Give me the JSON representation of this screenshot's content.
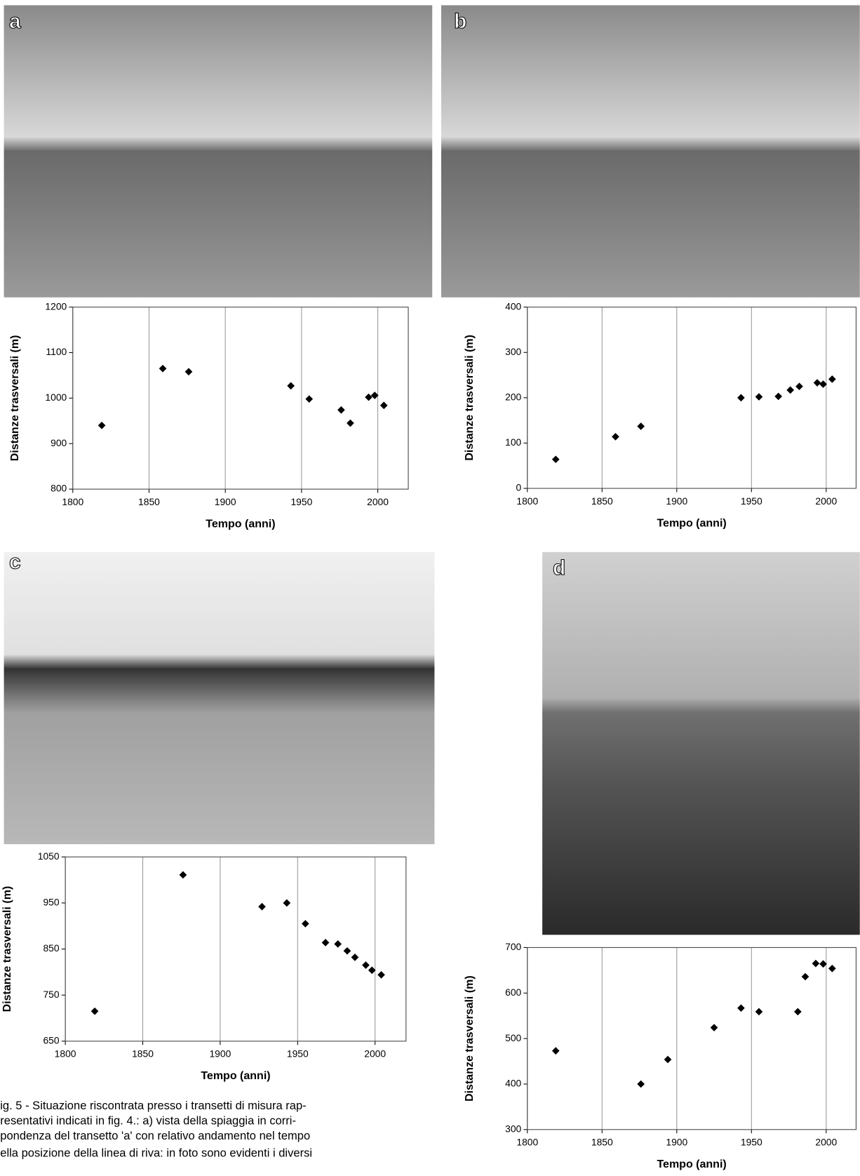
{
  "panels": [
    "a",
    "b",
    "c",
    "d"
  ],
  "caption": [
    "ig. 5 - Situazione riscontrata presso i transetti di misura rap-",
    "resentativi indicati in fig. 4.: a) vista della spiaggia in corri-",
    "pondenza del transetto 'a' con relativo andamento nel tempo",
    "ella posizione della linea di riva: in foto sono evidenti i diversi"
  ],
  "chart_data": [
    {
      "type": "scatter",
      "xlabel": "Tempo (anni)",
      "ylabel": "Distanze trasversali (m)",
      "color": "#000000",
      "grid": "x",
      "x": [
        1819,
        1859,
        1876,
        1943,
        1955,
        1976,
        1982,
        1994,
        1998,
        2004
      ],
      "values": [
        940,
        1065,
        1058,
        1027,
        998,
        974,
        945,
        1002,
        1006,
        984
      ],
      "xlim": [
        1800,
        2020
      ],
      "xticks": [
        1800,
        1850,
        1900,
        1950,
        2000
      ],
      "ylim": [
        800,
        1200
      ],
      "yticks": [
        800,
        900,
        1000,
        1100,
        1200
      ]
    },
    {
      "type": "scatter",
      "xlabel": "Tempo (anni)",
      "ylabel": "Distanze trasversali (m)",
      "color": "#000000",
      "grid": "x",
      "x": [
        1819,
        1859,
        1876,
        1943,
        1955,
        1968,
        1976,
        1982,
        1994,
        1998,
        2004
      ],
      "values": [
        64,
        114,
        137,
        200,
        202,
        203,
        217,
        225,
        233,
        230,
        241
      ],
      "xlim": [
        1800,
        2020
      ],
      "xticks": [
        1800,
        1850,
        1900,
        1950,
        2000
      ],
      "ylim": [
        0,
        400
      ],
      "yticks": [
        0,
        100,
        200,
        300,
        400
      ]
    },
    {
      "type": "scatter",
      "xlabel": "Tempo (anni)",
      "ylabel": "Distanze trasversali (m)",
      "color": "#000000",
      "grid": "x",
      "x": [
        1819,
        1876,
        1927,
        1943,
        1955,
        1968,
        1976,
        1982,
        1987,
        1994,
        1998,
        2004
      ],
      "values": [
        715,
        1011,
        942,
        950,
        905,
        864,
        861,
        846,
        832,
        815,
        804,
        794
      ],
      "xlim": [
        1800,
        2020
      ],
      "xticks": [
        1800,
        1850,
        1900,
        1950,
        2000
      ],
      "ylim": [
        650,
        1050
      ],
      "yticks": [
        650,
        750,
        850,
        950,
        1050
      ]
    },
    {
      "type": "scatter",
      "xlabel": "Tempo (anni)",
      "ylabel": "Distanze trasversali (m)",
      "color": "#000000",
      "grid": "x",
      "x": [
        1819,
        1876,
        1894,
        1925,
        1943,
        1955,
        1981,
        1986,
        1993,
        1998,
        2004
      ],
      "values": [
        473,
        400,
        454,
        524,
        567,
        559,
        559,
        636,
        665,
        664,
        654
      ],
      "xlim": [
        1800,
        2020
      ],
      "xticks": [
        1800,
        1850,
        1900,
        1950,
        2000
      ],
      "ylim": [
        300,
        700
      ],
      "yticks": [
        300,
        400,
        500,
        600,
        700
      ]
    }
  ]
}
